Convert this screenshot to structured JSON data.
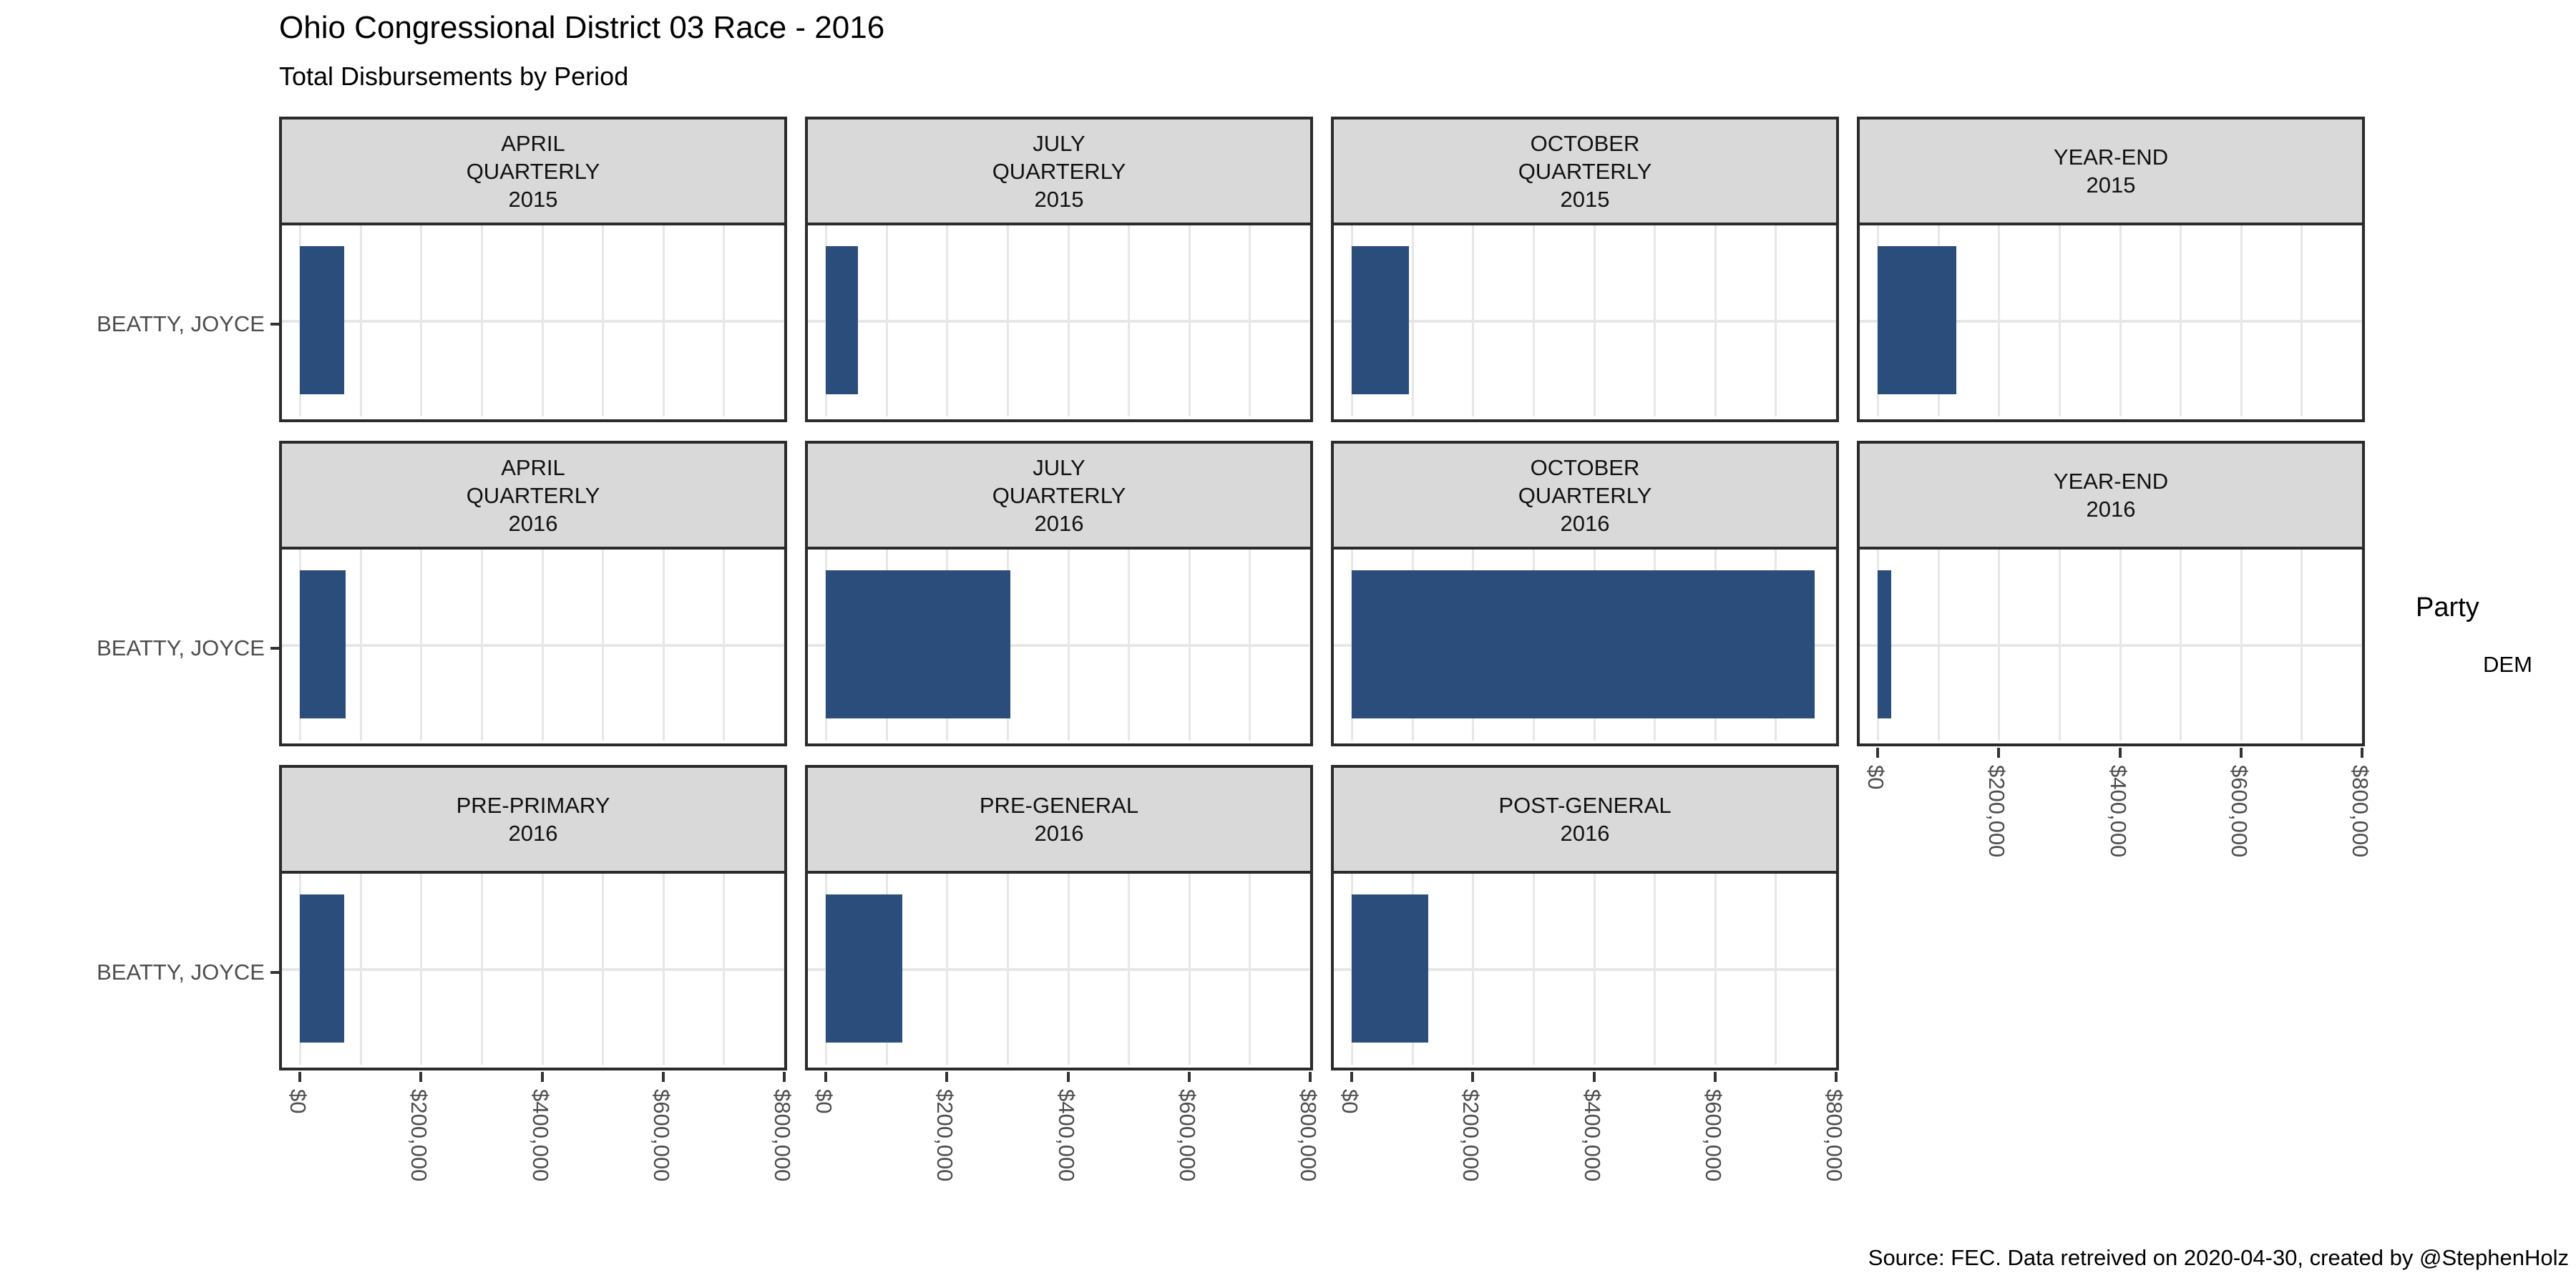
{
  "title": "Ohio Congressional District 03 Race - 2016",
  "subtitle": "Total Disbursements by Period",
  "caption": "Source: FEC. Data retreived on 2020-04-30, created by @StephenHolz",
  "legend": {
    "title": "Party",
    "entries": [
      {
        "label": "DEM",
        "color": "#2b4d7c"
      }
    ]
  },
  "colors": {
    "bar": "#2b4d7c",
    "facet_header_fill": "#d9d9d9",
    "panel_border": "#2b2b2b",
    "gridline": "#e7e7e7",
    "axis_text": "#4d4d4d"
  },
  "chart_data": {
    "type": "bar",
    "orientation": "horizontal",
    "title": "Ohio Congressional District 03 Race - 2016",
    "subtitle": "Total Disbursements by Period",
    "y_category": "BEATTY, JOYCE",
    "series_name": "DEM",
    "xlim": [
      0,
      800000
    ],
    "x_major_ticks": [
      0,
      200000,
      400000,
      600000,
      800000
    ],
    "x_tick_labels": [
      "$0",
      "$200,000",
      "$400,000",
      "$600,000",
      "$800,000"
    ],
    "x_minor_step": 100000,
    "grid": true,
    "legend_position": "right",
    "facets": [
      {
        "row": 0,
        "col": 0,
        "label_lines": [
          "APRIL",
          "QUARTERLY",
          "2015"
        ],
        "period": "APRIL QUARTERLY 2015",
        "value": 73000
      },
      {
        "row": 0,
        "col": 1,
        "label_lines": [
          "JULY",
          "QUARTERLY",
          "2015"
        ],
        "period": "JULY QUARTERLY 2015",
        "value": 53000
      },
      {
        "row": 0,
        "col": 2,
        "label_lines": [
          "OCTOBER",
          "QUARTERLY",
          "2015"
        ],
        "period": "OCTOBER QUARTERLY 2015",
        "value": 95000
      },
      {
        "row": 0,
        "col": 3,
        "label_lines": [
          "YEAR-END",
          "2015"
        ],
        "period": "YEAR-END 2015",
        "value": 130000
      },
      {
        "row": 1,
        "col": 0,
        "label_lines": [
          "APRIL",
          "QUARTERLY",
          "2016"
        ],
        "period": "APRIL QUARTERLY 2016",
        "value": 76000
      },
      {
        "row": 1,
        "col": 1,
        "label_lines": [
          "JULY",
          "QUARTERLY",
          "2016"
        ],
        "period": "JULY QUARTERLY 2016",
        "value": 305000
      },
      {
        "row": 1,
        "col": 2,
        "label_lines": [
          "OCTOBER",
          "QUARTERLY",
          "2016"
        ],
        "period": "OCTOBER QUARTERLY 2016",
        "value": 765000
      },
      {
        "row": 1,
        "col": 3,
        "label_lines": [
          "YEAR-END",
          "2016"
        ],
        "period": "YEAR-END 2016",
        "value": 22000
      },
      {
        "row": 2,
        "col": 0,
        "label_lines": [
          "PRE-PRIMARY",
          "2016"
        ],
        "period": "PRE-PRIMARY 2016",
        "value": 73000
      },
      {
        "row": 2,
        "col": 1,
        "label_lines": [
          "PRE-GENERAL",
          "2016"
        ],
        "period": "PRE-GENERAL 2016",
        "value": 127000
      },
      {
        "row": 2,
        "col": 2,
        "label_lines": [
          "POST-GENERAL",
          "2016"
        ],
        "period": "POST-GENERAL 2016",
        "value": 126000
      }
    ]
  }
}
